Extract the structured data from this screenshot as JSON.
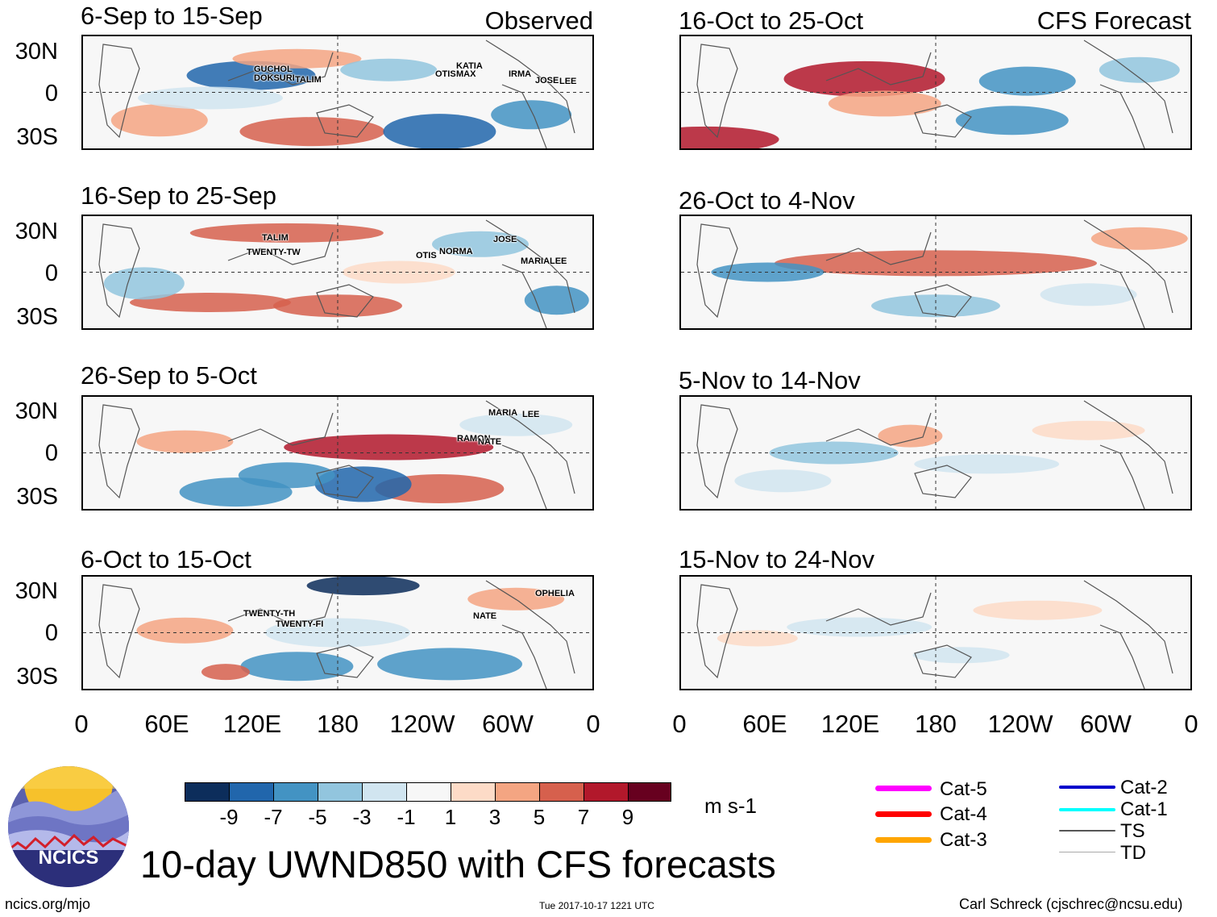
{
  "header": {
    "observed_label": "Observed",
    "forecast_label": "CFS Forecast"
  },
  "axes": {
    "lat_ticks": [
      "30N",
      "0",
      "30S"
    ],
    "lon_ticks": [
      "0",
      "60E",
      "120E",
      "180",
      "120W",
      "60W",
      "0"
    ]
  },
  "panels": {
    "observed": [
      {
        "title": "6-Sep to 15-Sep",
        "storms": [
          "GUCHOL",
          "DOKSURI",
          "TALIM",
          "OTIS",
          "MAX",
          "KATIA",
          "IRMA",
          "JOSE",
          "LEE"
        ]
      },
      {
        "title": "16-Sep to 25-Sep",
        "storms": [
          "TALIM",
          "TWENTY-TW",
          "OTIS",
          "NORMA",
          "JOSE",
          "MARIA",
          "LEE"
        ]
      },
      {
        "title": "26-Sep to 5-Oct",
        "storms": [
          "MARIA",
          "LEE",
          "RAMON",
          "NATE"
        ]
      },
      {
        "title": "6-Oct to 15-Oct",
        "storms": [
          "TWENTY-TH",
          "TWENTY-FI",
          "NATE",
          "OPHELIA"
        ]
      }
    ],
    "forecast": [
      {
        "title": "16-Oct to 25-Oct"
      },
      {
        "title": "26-Oct to 4-Nov"
      },
      {
        "title": "5-Nov to 14-Nov"
      },
      {
        "title": "15-Nov to 24-Nov"
      }
    ]
  },
  "colorbar": {
    "ticks": [
      "-9",
      "-7",
      "-5",
      "-3",
      "-1",
      "1",
      "3",
      "5",
      "7",
      "9"
    ],
    "colors": [
      "#0c2d5b",
      "#2166ac",
      "#4393c3",
      "#92c5de",
      "#d1e5f0",
      "#f7f7f7",
      "#fddbc7",
      "#f4a582",
      "#d6604d",
      "#b2182b",
      "#67001f"
    ],
    "unit": "m s-1"
  },
  "legend": {
    "items": [
      {
        "label": "Cat-5",
        "color": "#ff00ff"
      },
      {
        "label": "Cat-4",
        "color": "#ff0000"
      },
      {
        "label": "Cat-3",
        "color": "#ffa500"
      },
      {
        "label": "Cat-2",
        "color": "#0000cc"
      },
      {
        "label": "Cat-1",
        "color": "#00ffff"
      },
      {
        "label": "TS",
        "color": "#555555"
      },
      {
        "label": "TD",
        "color": "#aaaaaa"
      }
    ]
  },
  "footer": {
    "main_title": "10-day UWND850 with CFS forecasts",
    "url": "ncics.org/mjo",
    "timestamp": "Tue 2017-10-17 1221 UTC",
    "author": "Carl Schreck (cjschrec@ncsu.edu)",
    "logo_text": "NCICS"
  },
  "chart_data": {
    "type": "heatmap",
    "variable": "10-day mean 850-hPa zonal wind anomaly",
    "units": "m s-1",
    "color_levels": [
      -9,
      -7,
      -5,
      -3,
      -1,
      1,
      3,
      5,
      7,
      9
    ],
    "x_range": [
      "0",
      "0"
    ],
    "y_range": [
      "30S",
      "30N"
    ],
    "columns": [
      "Observed",
      "CFS Forecast"
    ],
    "observed_periods": [
      "6-Sep to 15-Sep",
      "16-Sep to 25-Sep",
      "26-Sep to 5-Oct",
      "6-Oct to 15-Oct"
    ],
    "forecast_periods": [
      "16-Oct to 25-Oct",
      "26-Oct to 4-Nov",
      "5-Nov to 14-Nov",
      "15-Nov to 24-Nov"
    ]
  }
}
